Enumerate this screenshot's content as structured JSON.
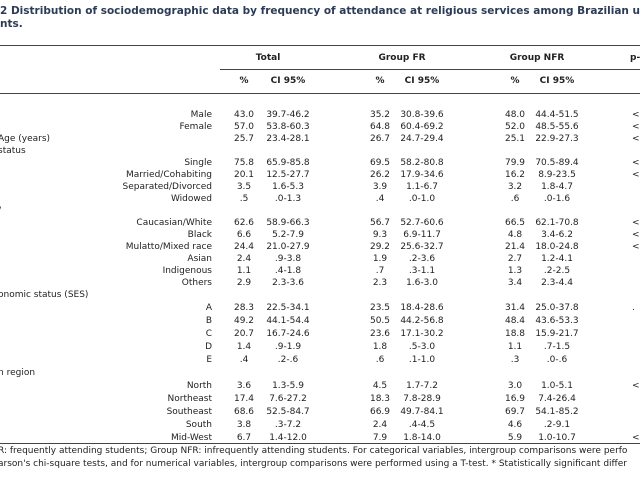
{
  "title": [
    "2 Distribution of sociodemographic data by frequency of attendance at religious services among Brazilian unive",
    "nts."
  ],
  "header": {
    "groups": [
      "Total",
      "Group FR",
      "Group NFR",
      "p-"
    ],
    "sub": [
      "%",
      "CI 95%",
      "%",
      "CI 95%",
      "%",
      "CI 95%"
    ]
  },
  "rows": [
    {
      "label": "Male",
      "cells": [
        "43.0",
        "39.7-46.2",
        "35.2",
        "30.8-39.6",
        "48.0",
        "44.4-51.5"
      ],
      "p": "<"
    },
    {
      "label": "Female",
      "cells": [
        "57.0",
        "53.8-60.3",
        "64.8",
        "60.4-69.2",
        "52.0",
        "48.5-55.6"
      ],
      "p": "<"
    },
    {
      "heading": "Age (years)",
      "cells": [
        "25.7",
        "23.4-28.1",
        "26.7",
        "24.7-29.4",
        "25.1",
        "22.9-27.3"
      ],
      "p": "<"
    },
    {
      "heading": "status"
    },
    {
      "label": "Single",
      "cells": [
        "75.8",
        "65.9-85.8",
        "69.5",
        "58.2-80.8",
        "79.9",
        "70.5-89.4"
      ],
      "p": "<"
    },
    {
      "label": "Married/Cohabiting",
      "cells": [
        "20.1",
        "12.5-27.7",
        "26.2",
        "17.9-34.6",
        "16.2",
        "8.9-23.5"
      ],
      "p": "<"
    },
    {
      "label": "Separated/Divorced",
      "cells": [
        "3.5",
        "1.6-5.3",
        "3.9",
        "1.1-6.7",
        "3.2",
        "1.8-4.7"
      ]
    },
    {
      "label": "Widowed",
      "cells": [
        ".5",
        ".0-1.3",
        ".4",
        ".0-1.0",
        ".6",
        ".0-1.6"
      ]
    },
    {
      "heading": "/"
    },
    {
      "label": "Caucasian/White",
      "cells": [
        "62.6",
        "58.9-66.3",
        "56.7",
        "52.7-60.6",
        "66.5",
        "62.1-70.8"
      ],
      "p": "<"
    },
    {
      "label": "Black",
      "cells": [
        "6.6",
        "5.2-7.9",
        "9.3",
        "6.9-11.7",
        "4.8",
        "3.4-6.2"
      ],
      "p": "<"
    },
    {
      "label": "Mulatto/Mixed race",
      "cells": [
        "24.4",
        "21.0-27.9",
        "29.2",
        "25.6-32.7",
        "21.4",
        "18.0-24.8"
      ],
      "p": "<"
    },
    {
      "label": "Asian",
      "cells": [
        "2.4",
        ".9-3.8",
        "1.9",
        ".2-3.6",
        "2.7",
        "1.2-4.1"
      ]
    },
    {
      "label": "Indigenous",
      "cells": [
        "1.1",
        ".4-1.8",
        ".7",
        ".3-1.1",
        "1.3",
        ".2-2.5"
      ]
    },
    {
      "label": "Others",
      "cells": [
        "2.9",
        "2.3-3.6",
        "2.3",
        "1.6-3.0",
        "3.4",
        "2.3-4.4"
      ]
    },
    {
      "heading": "onomic status (SES)"
    },
    {
      "label": "A",
      "cells": [
        "28.3",
        "22.5-34.1",
        "23.5",
        "18.4-28.6",
        "31.4",
        "25.0-37.8"
      ],
      "p": "."
    },
    {
      "label": "B",
      "cells": [
        "49.2",
        "44.1-54.4",
        "50.5",
        "44.2-56.8",
        "48.4",
        "43.6-53.3"
      ]
    },
    {
      "label": "C",
      "cells": [
        "20.7",
        "16.7-24.6",
        "23.6",
        "17.1-30.2",
        "18.8",
        "15.9-21.7"
      ]
    },
    {
      "label": "D",
      "cells": [
        "1.4",
        ".9-1.9",
        "1.8",
        ".5-3.0",
        "1.1",
        ".7-1.5"
      ]
    },
    {
      "label": "E",
      "cells": [
        ".4",
        ".2-.6",
        ".6",
        ".1-1.0",
        ".3",
        ".0-.6"
      ]
    },
    {
      "heading": "n region"
    },
    {
      "label": "North",
      "cells": [
        "3.6",
        "1.3-5.9",
        "4.5",
        "1.7-7.2",
        "3.0",
        "1.0-5.1"
      ],
      "p": "<"
    },
    {
      "label": "Northeast",
      "cells": [
        "17.4",
        "7.6-27.2",
        "18.3",
        "7.8-28.9",
        "16.9",
        "7.4-26.4"
      ]
    },
    {
      "label": "Southeast",
      "cells": [
        "68.6",
        "52.5-84.7",
        "66.9",
        "49.7-84.1",
        "69.7",
        "54.1-85.2"
      ]
    },
    {
      "label": "South",
      "cells": [
        "3.8",
        ".3-7.2",
        "2.4",
        ".4-4.5",
        "4.6",
        ".2-9.1"
      ]
    },
    {
      "label": "Mid-West",
      "cells": [
        "6.7",
        "1.4-12.0",
        "7.9",
        "1.8-14.0",
        "5.9",
        "1.0-10.7"
      ],
      "p": "<"
    }
  ],
  "footnote": [
    "R: frequently attending students; Group NFR: infrequently attending students. For categorical variables, intergroup comparisons were perfo",
    "arson's chi-square tests, and for numerical variables, intergroup comparisons were performed using a T-test. * Statistically significant differ"
  ]
}
